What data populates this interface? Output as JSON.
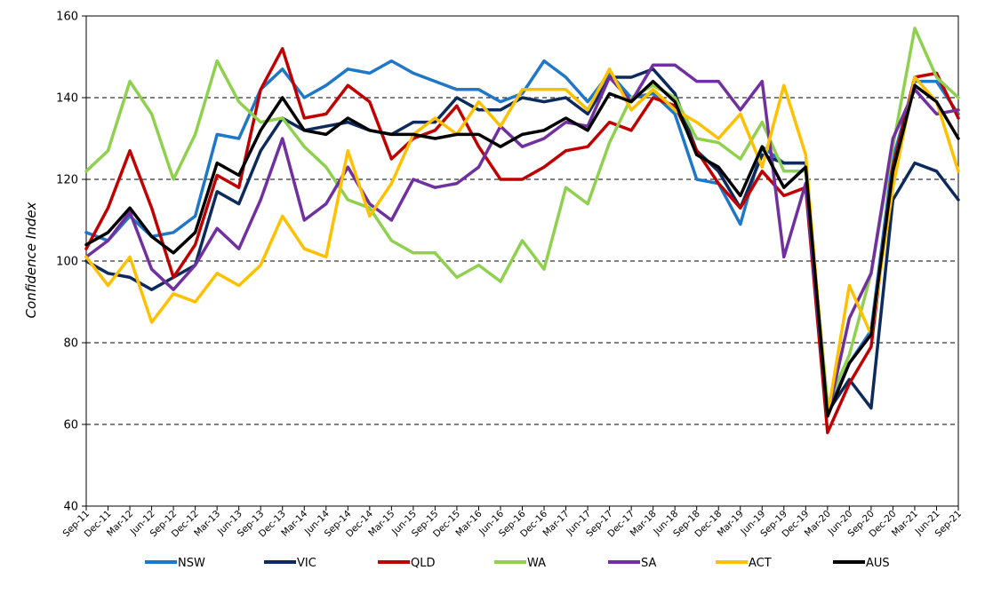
{
  "chart_data": {
    "type": "line",
    "title": "",
    "xlabel": "",
    "ylabel": "Confidence Index",
    "ylim": [
      40,
      160
    ],
    "yticks": [
      40,
      60,
      80,
      100,
      120,
      140,
      160
    ],
    "grid": "horizontal dashed",
    "legend": "bottom",
    "categories": [
      "Sep-11",
      "Dec-11",
      "Mar-12",
      "Jun-12",
      "Sep-12",
      "Dec-12",
      "Mar-13",
      "Jun-13",
      "Sep-13",
      "Dec-13",
      "Mar-14",
      "Jun-14",
      "Sep-14",
      "Dec-14",
      "Mar-15",
      "Jun-15",
      "Sep-15",
      "Dec-15",
      "Mar-16",
      "Jun-16",
      "Sep-16",
      "Dec-16",
      "Mar-17",
      "Jun-17",
      "Sep-17",
      "Dec-17",
      "Mar-18",
      "Jun-18",
      "Sep-18",
      "Dec-18",
      "Mar-19",
      "Jun-19",
      "Sep-19",
      "Dec-19",
      "Mar-20",
      "Jun-20",
      "Sep-20",
      "Dec-20",
      "Mar-21",
      "Jun-21",
      "Sep-21"
    ],
    "series": [
      {
        "name": "NSW",
        "color": "#1f77c8",
        "values": [
          107,
          105,
          111,
          106,
          107,
          111,
          131,
          130,
          142,
          147,
          140,
          143,
          147,
          146,
          149,
          146,
          144,
          142,
          142,
          139,
          141,
          149,
          145,
          139,
          146,
          140,
          141,
          136,
          120,
          119,
          109,
          128,
          124,
          124,
          63,
          75,
          83,
          125,
          144,
          144,
          136
        ]
      },
      {
        "name": "VIC",
        "color": "#0d2a5c",
        "values": [
          100,
          97,
          96,
          93,
          96,
          99,
          117,
          114,
          127,
          135,
          132,
          133,
          134,
          132,
          131,
          134,
          134,
          140,
          137,
          137,
          140,
          139,
          140,
          136,
          145,
          145,
          147,
          141,
          127,
          122,
          113,
          126,
          124,
          124,
          63,
          71,
          64,
          115,
          124,
          122,
          115
        ]
      },
      {
        "name": "QLD",
        "color": "#c00000",
        "values": [
          103,
          113,
          127,
          113,
          96,
          104,
          121,
          118,
          142,
          152,
          135,
          136,
          143,
          139,
          125,
          130,
          132,
          138,
          128,
          120,
          120,
          123,
          127,
          128,
          134,
          132,
          140,
          138,
          127,
          119,
          113,
          122,
          116,
          118,
          58,
          70,
          79,
          123,
          145,
          146,
          135
        ]
      },
      {
        "name": "WA",
        "color": "#8fd14f",
        "values": [
          122,
          127,
          144,
          136,
          120,
          131,
          149,
          139,
          134,
          135,
          128,
          123,
          115,
          113,
          105,
          102,
          102,
          96,
          99,
          95,
          105,
          98,
          118,
          114,
          129,
          140,
          143,
          140,
          130,
          129,
          125,
          134,
          122,
          122,
          65,
          77,
          97,
          128,
          157,
          145,
          140
        ]
      },
      {
        "name": "SA",
        "color": "#7030a0",
        "values": [
          101,
          105,
          112,
          98,
          93,
          99,
          108,
          103,
          115,
          130,
          110,
          114,
          123,
          114,
          110,
          120,
          118,
          119,
          123,
          133,
          128,
          130,
          134,
          133,
          145,
          139,
          148,
          148,
          144,
          144,
          137,
          144,
          101,
          119,
          62,
          86,
          97,
          130,
          142,
          136,
          137
        ]
      },
      {
        "name": "ACT",
        "color": "#ffc000",
        "values": [
          101,
          94,
          101,
          85,
          92,
          90,
          97,
          94,
          99,
          111,
          103,
          101,
          127,
          111,
          119,
          131,
          135,
          131,
          139,
          133,
          142,
          142,
          142,
          137,
          147,
          137,
          142,
          137,
          134,
          130,
          136,
          123,
          143,
          126,
          62,
          94,
          82,
          118,
          145,
          139,
          122
        ]
      },
      {
        "name": "AUS",
        "color": "#000000",
        "values": [
          104,
          107,
          113,
          106,
          102,
          107,
          124,
          121,
          132,
          140,
          132,
          131,
          135,
          132,
          131,
          131,
          130,
          131,
          131,
          128,
          131,
          132,
          135,
          132,
          141,
          139,
          144,
          139,
          126,
          123,
          116,
          128,
          118,
          123,
          62,
          75,
          82,
          122,
          143,
          139,
          130
        ]
      }
    ]
  }
}
